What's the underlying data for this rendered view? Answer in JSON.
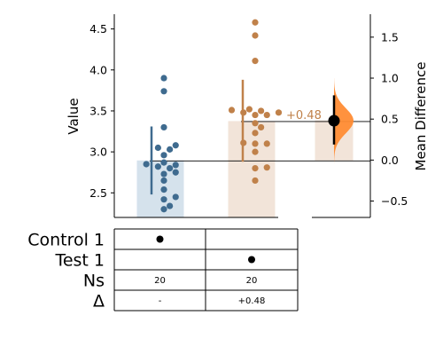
{
  "chart_data": {
    "type": "scatter",
    "subtype": "gardner-altman estimation plot with bar and table",
    "left_axis": {
      "label": "Value",
      "ylim": [
        2.2,
        4.68
      ],
      "ticks": [
        2.5,
        3.0,
        3.5,
        4.0,
        4.5
      ],
      "tick_labels": [
        "2.5",
        "3.0",
        "3.5",
        "4.0",
        "4.5"
      ]
    },
    "right_axis": {
      "label": "Mean Difference",
      "ylim": [
        -0.7,
        1.78
      ],
      "ticks": [
        -0.5,
        0.0,
        0.5,
        1.0,
        1.5
      ],
      "tick_labels": [
        "−0.5",
        "0.0",
        "0.5",
        "1.0",
        "1.5"
      ]
    },
    "groups": [
      {
        "name": "Control 1",
        "color": "#3f6b8f",
        "bar_color": "#d5e2ec",
        "mean": 2.89,
        "ci": [
          2.48,
          3.31
        ],
        "values": [
          2.3,
          2.34,
          2.42,
          2.45,
          2.54,
          2.65,
          2.73,
          2.75,
          2.8,
          2.82,
          2.84,
          2.85,
          2.87,
          2.96,
          3.03,
          3.05,
          3.08,
          3.3,
          3.74,
          3.9
        ]
      },
      {
        "name": "Test 1",
        "color": "#c0814a",
        "bar_color": "#f2e4d9",
        "mean": 3.37,
        "ci": [
          2.88,
          3.88
        ],
        "values": [
          2.65,
          2.8,
          2.81,
          3.0,
          3.1,
          3.1,
          3.11,
          3.23,
          3.3,
          3.35,
          3.45,
          3.45,
          3.48,
          3.48,
          3.5,
          3.51,
          3.52,
          4.11,
          4.42,
          4.58
        ]
      }
    ],
    "effect_size": {
      "label": "+0.48",
      "value": 0.48,
      "ci": [
        0.19,
        0.79
      ],
      "bar_color": "#f2e4d9",
      "distribution_color": "#ff8c34"
    },
    "table": {
      "row_labels": [
        "Control 1",
        "Test 1",
        "Ns",
        "Δ"
      ],
      "columns": [
        {
          "marker_row": 0,
          "n": "20",
          "delta": "-"
        },
        {
          "marker_row": 1,
          "n": "20",
          "delta": "+0.48"
        }
      ]
    }
  }
}
